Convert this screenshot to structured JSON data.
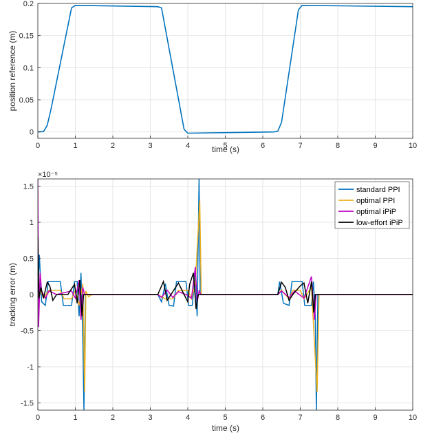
{
  "chart_data": [
    {
      "type": "line",
      "xlabel": "time (s)",
      "ylabel": "position reference (m)",
      "xlim": [
        0,
        10
      ],
      "ylim": [
        -0.01,
        0.2
      ],
      "xticks": [
        "0",
        "1",
        "2",
        "3",
        "4",
        "5",
        "6",
        "7",
        "8",
        "9",
        "10"
      ],
      "yticks": [
        "0",
        "0.05",
        "0.1",
        "0.15",
        "0.2"
      ],
      "grid": true,
      "series": [
        {
          "color": "#0072bd",
          "x": [
            0,
            0.15,
            0.25,
            0.35,
            0.9,
            1.0,
            3.2,
            3.3,
            3.9,
            4.0,
            6.3,
            6.4,
            6.5,
            6.95,
            7.05,
            10
          ],
          "y": [
            0,
            0.0005,
            0.01,
            0.035,
            0.193,
            0.197,
            0.195,
            0.193,
            0.004,
            -0.002,
            0.0,
            0.001,
            0.015,
            0.19,
            0.197,
            0.195
          ]
        }
      ]
    },
    {
      "type": "line",
      "xlabel": "time (s)",
      "ylabel": "tracking error (m)",
      "y_exponent": "×10⁻⁵",
      "xlim": [
        0,
        10
      ],
      "ylim": [
        -1.6,
        1.6
      ],
      "xticks": [
        "0",
        "1",
        "2",
        "3",
        "4",
        "5",
        "6",
        "7",
        "8",
        "9",
        "10"
      ],
      "yticks": [
        "-1.5",
        "-1",
        "-0.5",
        "0",
        "0.5",
        "1",
        "1.5"
      ],
      "grid": true,
      "legend_position": "top-right",
      "legend": [
        "standard PPI",
        "optimal PPI",
        "optimal iPiP",
        "low-effort  iPiP"
      ],
      "series": [
        {
          "name": "standard PPI",
          "color": "#0072bd",
          "points": [
            [
              0,
              0
            ],
            [
              0.04,
              0.55
            ],
            [
              0.1,
              -0.1
            ],
            [
              0.2,
              -0.15
            ],
            [
              0.28,
              0.18
            ],
            [
              0.6,
              0.18
            ],
            [
              0.68,
              -0.15
            ],
            [
              0.9,
              -0.15
            ],
            [
              0.98,
              0.18
            ],
            [
              1.05,
              0.18
            ],
            [
              1.1,
              -0.3
            ],
            [
              1.15,
              0.3
            ],
            [
              1.2,
              -0.6
            ],
            [
              1.23,
              -1.6
            ],
            [
              1.27,
              0.0
            ],
            [
              1.35,
              0.0
            ],
            [
              3.2,
              0
            ],
            [
              3.3,
              -0.1
            ],
            [
              3.4,
              0.15
            ],
            [
              3.5,
              -0.15
            ],
            [
              3.62,
              -0.16
            ],
            [
              3.7,
              0.18
            ],
            [
              3.95,
              0.18
            ],
            [
              4.02,
              -0.15
            ],
            [
              4.12,
              -0.15
            ],
            [
              4.2,
              0.3
            ],
            [
              4.25,
              -0.3
            ],
            [
              4.3,
              1.6
            ],
            [
              4.33,
              0.0
            ],
            [
              4.45,
              0.0
            ],
            [
              6.4,
              0
            ],
            [
              6.45,
              0.18
            ],
            [
              6.55,
              -0.12
            ],
            [
              6.7,
              -0.15
            ],
            [
              6.78,
              0.18
            ],
            [
              7.05,
              0.18
            ],
            [
              7.12,
              -0.15
            ],
            [
              7.3,
              -0.15
            ],
            [
              7.35,
              0.18
            ],
            [
              7.4,
              -0.3
            ],
            [
              7.43,
              -1.6
            ],
            [
              7.47,
              0.0
            ],
            [
              7.55,
              0.0
            ],
            [
              10,
              0
            ]
          ]
        },
        {
          "name": "optimal PPI",
          "color": "#ecb01f",
          "points": [
            [
              0,
              0
            ],
            [
              0.05,
              0.1
            ],
            [
              0.15,
              -0.05
            ],
            [
              0.3,
              0.06
            ],
            [
              0.6,
              0.06
            ],
            [
              0.7,
              -0.06
            ],
            [
              0.9,
              -0.06
            ],
            [
              1.0,
              0.06
            ],
            [
              1.1,
              -0.15
            ],
            [
              1.2,
              0.15
            ],
            [
              1.25,
              -1.35
            ],
            [
              1.28,
              0.05
            ],
            [
              1.35,
              -0.03
            ],
            [
              1.45,
              0.0
            ],
            [
              3.2,
              0
            ],
            [
              3.4,
              -0.06
            ],
            [
              3.6,
              -0.06
            ],
            [
              3.75,
              0.06
            ],
            [
              4.0,
              0.06
            ],
            [
              4.1,
              -0.06
            ],
            [
              4.2,
              0.15
            ],
            [
              4.32,
              1.3
            ],
            [
              4.36,
              0.0
            ],
            [
              4.5,
              0.0
            ],
            [
              6.4,
              0
            ],
            [
              6.5,
              0.06
            ],
            [
              6.7,
              -0.06
            ],
            [
              6.8,
              0.06
            ],
            [
              7.0,
              0.06
            ],
            [
              7.1,
              -0.06
            ],
            [
              7.3,
              0.1
            ],
            [
              7.45,
              -1.35
            ],
            [
              7.5,
              0.0
            ],
            [
              7.6,
              0.0
            ],
            [
              10,
              0
            ]
          ]
        },
        {
          "name": "optimal iPiP",
          "color": "#c000c0",
          "points": [
            [
              0,
              1.6
            ],
            [
              0.02,
              -0.45
            ],
            [
              0.06,
              0.3
            ],
            [
              0.1,
              0.05
            ],
            [
              0.2,
              -0.05
            ],
            [
              0.3,
              0.05
            ],
            [
              0.5,
              0.0
            ],
            [
              0.9,
              0.05
            ],
            [
              1.0,
              -0.05
            ],
            [
              1.1,
              0.2
            ],
            [
              1.15,
              -0.35
            ],
            [
              1.2,
              0.1
            ],
            [
              1.25,
              0.0
            ],
            [
              3.2,
              0
            ],
            [
              3.3,
              -0.04
            ],
            [
              3.45,
              0.06
            ],
            [
              3.6,
              -0.04
            ],
            [
              3.75,
              0.04
            ],
            [
              3.95,
              0.0
            ],
            [
              4.1,
              -0.05
            ],
            [
              4.2,
              0.38
            ],
            [
              4.25,
              -0.1
            ],
            [
              4.3,
              0.05
            ],
            [
              4.35,
              0.0
            ],
            [
              6.4,
              0
            ],
            [
              6.5,
              0.05
            ],
            [
              6.7,
              -0.04
            ],
            [
              6.85,
              0.05
            ],
            [
              7.1,
              -0.05
            ],
            [
              7.3,
              0.25
            ],
            [
              7.38,
              -0.35
            ],
            [
              7.42,
              0.0
            ],
            [
              10,
              0
            ]
          ]
        },
        {
          "name": "low-effort  iPiP",
          "color": "#000000",
          "points": [
            [
              0,
              0.8
            ],
            [
              0.03,
              -0.05
            ],
            [
              0.08,
              0.1
            ],
            [
              0.15,
              -0.05
            ],
            [
              0.25,
              0.17
            ],
            [
              0.32,
              0.12
            ],
            [
              0.4,
              -0.08
            ],
            [
              0.5,
              0.0
            ],
            [
              0.8,
              0.0
            ],
            [
              0.9,
              0.08
            ],
            [
              0.98,
              0.14
            ],
            [
              1.05,
              -0.12
            ],
            [
              1.12,
              0.2
            ],
            [
              1.18,
              -0.3
            ],
            [
              1.22,
              0.0
            ],
            [
              3.2,
              0
            ],
            [
              3.35,
              0.18
            ],
            [
              3.45,
              -0.08
            ],
            [
              3.55,
              0.0
            ],
            [
              3.75,
              0.16
            ],
            [
              3.9,
              0.0
            ],
            [
              4.0,
              -0.1
            ],
            [
              4.05,
              0.14
            ],
            [
              4.15,
              0.3
            ],
            [
              4.22,
              -0.2
            ],
            [
              4.28,
              0.0
            ],
            [
              6.4,
              0
            ],
            [
              6.5,
              0.17
            ],
            [
              6.6,
              0.1
            ],
            [
              6.7,
              -0.08
            ],
            [
              6.8,
              0.0
            ],
            [
              7.0,
              0.12
            ],
            [
              7.1,
              0.16
            ],
            [
              7.2,
              -0.12
            ],
            [
              7.3,
              0.18
            ],
            [
              7.36,
              -0.25
            ],
            [
              7.4,
              0.0
            ],
            [
              10,
              0
            ]
          ]
        }
      ]
    }
  ]
}
